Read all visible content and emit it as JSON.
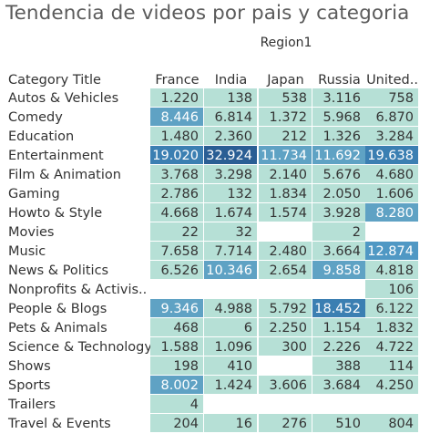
{
  "title": "Tendencia de videos por pais y categoria",
  "chart_data": {
    "type": "heatmap",
    "title": "Tendencia de videos por pais y categoria",
    "column_group_label": "Region1",
    "row_header": "Category Title",
    "columns": [
      "France",
      "India",
      "Japan",
      "Russia",
      "United.."
    ],
    "rows": [
      {
        "category": "Autos & Vehicles",
        "values": [
          1220,
          138,
          538,
          3116,
          758
        ]
      },
      {
        "category": "Comedy",
        "values": [
          8446,
          6814,
          1372,
          5968,
          6870
        ]
      },
      {
        "category": "Education",
        "values": [
          1480,
          2360,
          212,
          1326,
          3284
        ]
      },
      {
        "category": "Entertainment",
        "values": [
          19020,
          32924,
          11734,
          11692,
          19638
        ]
      },
      {
        "category": "Film & Animation",
        "values": [
          3768,
          3298,
          2140,
          5676,
          4680
        ]
      },
      {
        "category": "Gaming",
        "values": [
          2786,
          132,
          1834,
          2050,
          1606
        ]
      },
      {
        "category": "Howto & Style",
        "values": [
          4668,
          1674,
          1574,
          3928,
          8280
        ]
      },
      {
        "category": "Movies",
        "values": [
          22,
          32,
          null,
          2,
          null
        ]
      },
      {
        "category": "Music",
        "values": [
          7658,
          7714,
          2480,
          3664,
          12874
        ]
      },
      {
        "category": "News & Politics",
        "values": [
          6526,
          10346,
          2654,
          9858,
          4818
        ]
      },
      {
        "category": "Nonprofits & Activis..",
        "values": [
          null,
          null,
          null,
          null,
          106
        ]
      },
      {
        "category": "People & Blogs",
        "values": [
          9346,
          4988,
          5792,
          18452,
          6122
        ]
      },
      {
        "category": "Pets & Animals",
        "values": [
          468,
          6,
          2250,
          1154,
          1832
        ]
      },
      {
        "category": "Science & Technology",
        "values": [
          1588,
          1096,
          300,
          2226,
          4722
        ]
      },
      {
        "category": "Shows",
        "values": [
          198,
          410,
          null,
          388,
          114
        ]
      },
      {
        "category": "Sports",
        "values": [
          8002,
          1424,
          3606,
          3684,
          4250
        ]
      },
      {
        "category": "Trailers",
        "values": [
          4,
          null,
          null,
          null,
          null
        ]
      },
      {
        "category": "Travel & Events",
        "values": [
          204,
          16,
          276,
          510,
          804
        ]
      }
    ],
    "color_scale": [
      {
        "min": 0,
        "max": 8000,
        "color": "#b6e0d6"
      },
      {
        "min": 8000,
        "max": 12000,
        "color": "#5fa2c4"
      },
      {
        "min": 12000,
        "max": 18000,
        "color": "#5098c4"
      },
      {
        "min": 18000,
        "max": 25000,
        "color": "#3b7fb2"
      },
      {
        "min": 25000,
        "max": 40000,
        "color": "#2a5e94"
      }
    ],
    "text_colors": {
      "light_bg": "#333333",
      "dark_bg": "#ffffff"
    },
    "number_format": "thousands separator '.'"
  }
}
